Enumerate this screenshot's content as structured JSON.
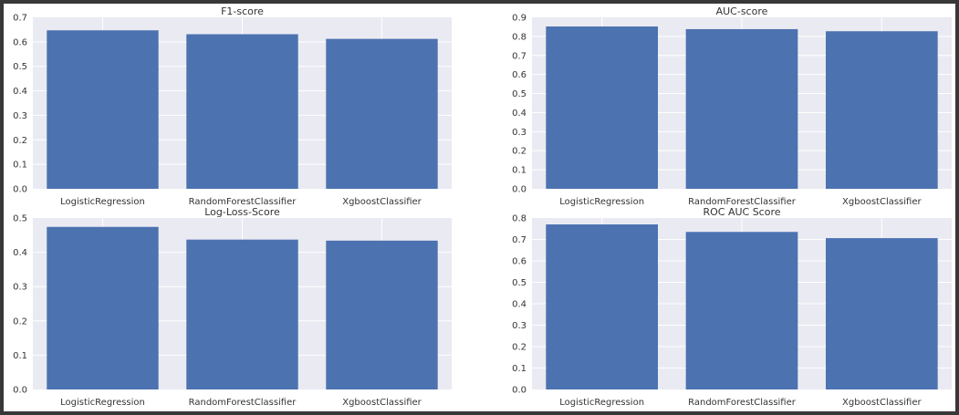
{
  "chart_data": [
    {
      "type": "bar",
      "title": "F1-score",
      "categories": [
        "LogisticRegression",
        "RandomForestClassifier",
        "XgboostClassifier"
      ],
      "values": [
        0.647,
        0.631,
        0.612
      ],
      "xlabel": "",
      "ylabel": "",
      "ylim": [
        0,
        0.7
      ],
      "yticks": [
        "0.0",
        "0.1",
        "0.2",
        "0.3",
        "0.4",
        "0.5",
        "0.6",
        "0.7"
      ],
      "grid": true,
      "color": "#4c72b0",
      "background": "#eaeaf2"
    },
    {
      "type": "bar",
      "title": "AUC-score",
      "categories": [
        "LogisticRegression",
        "RandomForestClassifier",
        "XgboostClassifier"
      ],
      "values": [
        0.852,
        0.838,
        0.827
      ],
      "xlabel": "",
      "ylabel": "",
      "ylim": [
        0,
        0.9
      ],
      "yticks": [
        "0.0",
        "0.1",
        "0.2",
        "0.3",
        "0.4",
        "0.5",
        "0.6",
        "0.7",
        "0.8",
        "0.9"
      ],
      "grid": true,
      "color": "#4c72b0",
      "background": "#eaeaf2"
    },
    {
      "type": "bar",
      "title": "Log-Loss-Score",
      "categories": [
        "LogisticRegression",
        "RandomForestClassifier",
        "XgboostClassifier"
      ],
      "values": [
        0.474,
        0.437,
        0.434
      ],
      "xlabel": "",
      "ylabel": "",
      "ylim": [
        0,
        0.5
      ],
      "yticks": [
        "0.0",
        "0.1",
        "0.2",
        "0.3",
        "0.4",
        "0.5"
      ],
      "grid": true,
      "color": "#4c72b0",
      "background": "#eaeaf2"
    },
    {
      "type": "bar",
      "title": "ROC AUC Score",
      "categories": [
        "LogisticRegression",
        "RandomForestClassifier",
        "XgboostClassifier"
      ],
      "values": [
        0.77,
        0.735,
        0.706
      ],
      "xlabel": "",
      "ylabel": "",
      "ylim": [
        0,
        0.8
      ],
      "yticks": [
        "0.0",
        "0.1",
        "0.2",
        "0.3",
        "0.4",
        "0.5",
        "0.6",
        "0.7",
        "0.8"
      ],
      "grid": true,
      "color": "#4c72b0",
      "background": "#eaeaf2"
    }
  ]
}
